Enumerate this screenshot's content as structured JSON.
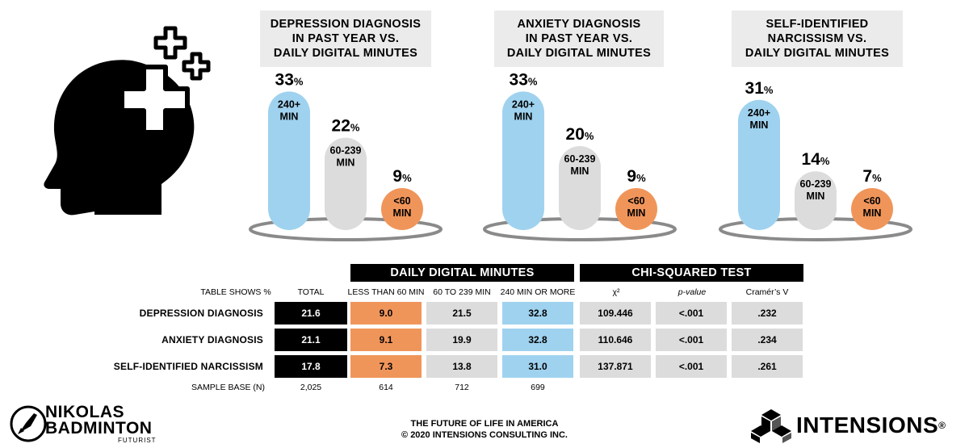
{
  "colors": {
    "high": "#9fd2ef",
    "mid": "#dcdcdc",
    "low": "#f0955a",
    "ring": "#8a8a8a",
    "header": "#000000"
  },
  "icon": "head-with-medical-crosses-icon",
  "chart_data": [
    {
      "type": "bar",
      "title": "DEPRESSION DIAGNOSIS IN PAST YEAR VS. DAILY DIGITAL MINUTES",
      "title_lines": [
        "DEPRESSION DIAGNOSIS",
        "IN PAST YEAR VS.",
        "DAILY DIGITAL MINUTES"
      ],
      "categories": [
        "240+ MIN",
        "60-239 MIN",
        "<60 MIN"
      ],
      "values": [
        33,
        22,
        9
      ],
      "unit": "%"
    },
    {
      "type": "bar",
      "title": "ANXIETY DIAGNOSIS IN PAST YEAR VS. DAILY DIGITAL MINUTES",
      "title_lines": [
        "ANXIETY DIAGNOSIS",
        "IN PAST YEAR VS.",
        "DAILY DIGITAL MINUTES"
      ],
      "categories": [
        "240+ MIN",
        "60-239 MIN",
        "<60 MIN"
      ],
      "values": [
        33,
        20,
        9
      ],
      "unit": "%"
    },
    {
      "type": "bar",
      "title": "SELF-IDENTIFIED NARCISSISM VS. DAILY DIGITAL MINUTES",
      "title_lines": [
        "SELF-IDENTIFIED",
        "NARCISSISM VS.",
        "DAILY DIGITAL MINUTES"
      ],
      "categories": [
        "240+ MIN",
        "60-239 MIN",
        "<60 MIN"
      ],
      "values": [
        31,
        14,
        7
      ],
      "unit": "%"
    },
    {
      "type": "table",
      "group_headers": [
        "DAILY DIGITAL MINUTES",
        "CHI-SQUARED TEST"
      ],
      "columns": [
        "TABLE SHOWS %",
        "TOTAL",
        "LESS THAN 60 MIN",
        "60 TO 239 MIN",
        "240 MIN OR MORE",
        "χ²",
        "p-value",
        "Cramér’s V"
      ],
      "rows": [
        {
          "label": "DEPRESSION DIAGNOSIS",
          "values": [
            "21.6",
            "9.0",
            "21.5",
            "32.8",
            "109.446",
            "<.001",
            ".232"
          ]
        },
        {
          "label": "ANXIETY DIAGNOSIS",
          "values": [
            "21.1",
            "9.1",
            "19.9",
            "32.8",
            "110.646",
            "<.001",
            ".234"
          ]
        },
        {
          "label": "SELF-IDENTIFIED NARCISSISM",
          "values": [
            "17.8",
            "7.3",
            "13.8",
            "31.0",
            "137.871",
            "<.001",
            ".261"
          ]
        }
      ],
      "sample_base": {
        "label": "SAMPLE BASE (N)",
        "values": [
          "2,025",
          "614",
          "712",
          "699"
        ]
      }
    }
  ],
  "footer": {
    "line1": "THE FUTURE OF LIFE IN AMERICA",
    "line2": "© 2020 INTENSIONS CONSULTING INC.",
    "left_logo": {
      "line1": "NIKOLAS",
      "line2": "BADMINTON",
      "line3": "FUTURIST"
    },
    "right_logo": {
      "text": "INTENSIONS",
      "mark": "®"
    }
  }
}
